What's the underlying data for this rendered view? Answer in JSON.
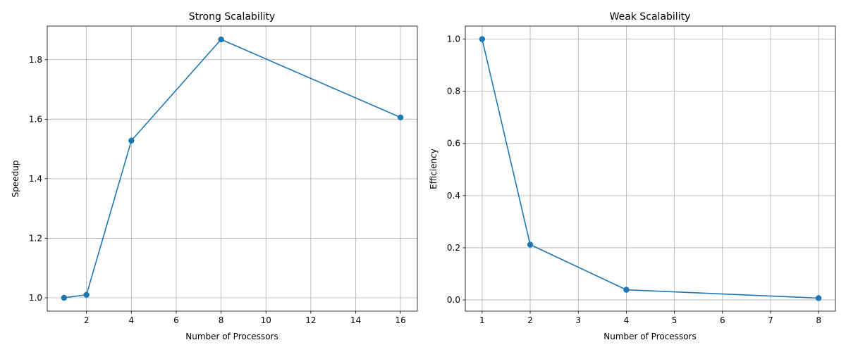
{
  "chart_data": [
    {
      "type": "line",
      "title": "Strong Scalability",
      "xlabel": "Number of Processors",
      "ylabel": "Speedup",
      "x": [
        1,
        2,
        4,
        8,
        16
      ],
      "series": [
        {
          "values": [
            1.0,
            1.01,
            1.528,
            1.868,
            1.606
          ]
        }
      ],
      "xlim": [
        0.25,
        16.75
      ],
      "ylim": [
        0.955,
        1.913
      ],
      "xticks": [
        2,
        4,
        6,
        8,
        10,
        12,
        14,
        16
      ],
      "yticks": [
        1.0,
        1.2,
        1.4,
        1.6,
        1.8
      ],
      "xtick_labels": [
        "2",
        "4",
        "6",
        "8",
        "10",
        "12",
        "14",
        "16"
      ],
      "ytick_labels": [
        "1.0",
        "1.2",
        "1.4",
        "1.6",
        "1.8"
      ],
      "grid": true,
      "marker": "circle",
      "color": "#1f77b4"
    },
    {
      "type": "line",
      "title": "Weak Scalability",
      "xlabel": "Number of Processors",
      "ylabel": "Efficiency",
      "x": [
        1,
        2,
        4,
        8
      ],
      "series": [
        {
          "values": [
            1.0,
            0.212,
            0.039,
            0.007
          ]
        }
      ],
      "xlim": [
        0.65,
        8.35
      ],
      "ylim": [
        -0.043,
        1.05
      ],
      "xticks": [
        1,
        2,
        3,
        4,
        5,
        6,
        7,
        8
      ],
      "yticks": [
        0.0,
        0.2,
        0.4,
        0.6,
        0.8,
        1.0
      ],
      "xtick_labels": [
        "1",
        "2",
        "3",
        "4",
        "5",
        "6",
        "7",
        "8"
      ],
      "ytick_labels": [
        "0.0",
        "0.2",
        "0.4",
        "0.6",
        "0.8",
        "1.0"
      ],
      "grid": true,
      "marker": "circle",
      "color": "#1f77b4"
    }
  ]
}
